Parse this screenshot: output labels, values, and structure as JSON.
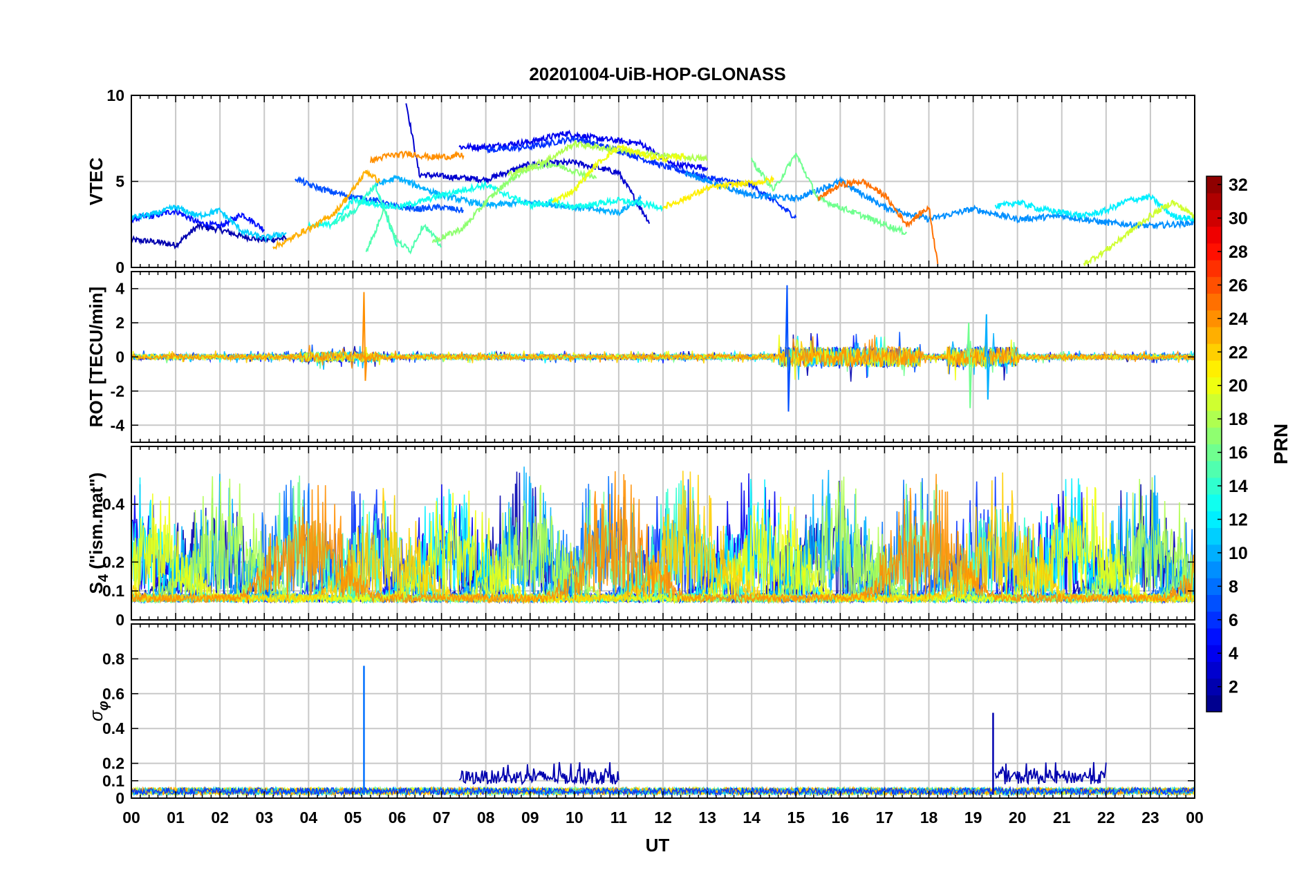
{
  "figure": {
    "title": "20201004-UiB-HOP-GLONASS",
    "xlabel": "UT"
  },
  "chart_data": [
    {
      "type": "line",
      "ylabel": "VTEC",
      "xlim": [
        0,
        24
      ],
      "ylim": [
        0,
        10
      ],
      "yticks": [
        0,
        5,
        10
      ],
      "grid": true,
      "x_ticklabels": [
        "00",
        "01",
        "02",
        "03",
        "04",
        "05",
        "06",
        "07",
        "08",
        "09",
        "10",
        "11",
        "12",
        "13",
        "14",
        "15",
        "16",
        "17",
        "18",
        "19",
        "20",
        "21",
        "22",
        "23",
        "00"
      ],
      "series": [
        {
          "prn": 2,
          "x": [
            0,
            0.5,
            1,
            1.5,
            2,
            2.5,
            3,
            3.5
          ],
          "y": [
            1.6,
            1.5,
            1.3,
            2.4,
            2.2,
            1.8,
            1.6,
            1.7
          ]
        },
        {
          "prn": 5,
          "x": [
            0,
            0.5,
            1,
            1.5,
            2,
            2.5,
            3
          ],
          "y": [
            2.8,
            3.0,
            3.3,
            2.6,
            2.4,
            3.1,
            2.2
          ]
        },
        {
          "prn": 3,
          "x": [
            6.2,
            6.5,
            7,
            8,
            9,
            10,
            11,
            11.7
          ],
          "y": [
            9.6,
            5.4,
            5.3,
            5.1,
            6.0,
            6.1,
            5.5,
            2.6
          ]
        },
        {
          "prn": 4,
          "x": [
            7.4,
            8,
            9,
            9.8,
            10.5,
            11.5,
            12.2,
            13
          ],
          "y": [
            7.0,
            7.0,
            7.3,
            7.8,
            7.5,
            7.2,
            6.0,
            5.8
          ]
        },
        {
          "prn": 6,
          "x": [
            8,
            9,
            10,
            11,
            12,
            13,
            14,
            15
          ],
          "y": [
            6.8,
            7.0,
            7.5,
            6.8,
            5.9,
            5.2,
            4.8,
            2.9
          ]
        },
        {
          "prn": 9,
          "x": [
            12.5,
            13,
            13.5,
            14,
            15,
            16,
            17,
            18,
            19,
            20,
            21,
            22,
            23,
            24
          ],
          "y": [
            5.5,
            5.0,
            4.6,
            4.2,
            4.0,
            5.0,
            3.5,
            2.8,
            3.4,
            2.8,
            3.0,
            2.6,
            2.4,
            2.6
          ]
        },
        {
          "prn": 7,
          "x": [
            3.7,
            4,
            4.5,
            5,
            5.5,
            6,
            6.5,
            7,
            7.5
          ],
          "y": [
            5.2,
            4.8,
            4.4,
            4.1,
            3.9,
            3.5,
            3.4,
            3.5,
            3.3
          ]
        },
        {
          "prn": 11,
          "x": [
            0,
            0.5,
            1,
            1.5,
            2,
            2.5,
            3,
            3.5
          ],
          "y": [
            2.9,
            3.1,
            3.5,
            3.0,
            3.3,
            2.1,
            1.7,
            2.0
          ]
        },
        {
          "prn": 10,
          "x": [
            5.5,
            6,
            7,
            8,
            9,
            10,
            11,
            11.5
          ],
          "y": [
            4.8,
            5.2,
            4.2,
            3.6,
            3.8,
            3.5,
            3.2,
            4.0
          ]
        },
        {
          "prn": 13,
          "x": [
            4,
            4.5,
            5,
            5.5,
            6,
            6.5,
            7,
            7.5,
            8,
            8.5,
            9,
            9.5,
            10,
            10.5,
            11,
            12
          ],
          "y": [
            2.4,
            2.5,
            3.9,
            3.7,
            3.5,
            3.8,
            4.2,
            4.5,
            4.8,
            4.2,
            3.6,
            3.8,
            3.5,
            3.7,
            3.9,
            3.5
          ]
        },
        {
          "prn": 12,
          "x": [
            19.5,
            20,
            20.5,
            21,
            21.5,
            22,
            22.5,
            23,
            23.5,
            24
          ],
          "y": [
            3.5,
            3.8,
            3.4,
            3.2,
            3.0,
            3.3,
            3.9,
            4.1,
            3.0,
            2.8
          ]
        },
        {
          "prn": 14,
          "x": [
            4.5,
            5,
            5.5,
            6
          ],
          "y": [
            2.5,
            3.2,
            4.8,
            1.2
          ]
        },
        {
          "prn": 15,
          "x": [
            5.3,
            5.5,
            5.7,
            6.0,
            6.3,
            6.6,
            7
          ],
          "y": [
            1.0,
            2.0,
            3.5,
            1.5,
            1.0,
            2.5,
            1.2
          ]
        },
        {
          "prn": 16,
          "x": [
            14,
            14.5,
            15,
            15.5,
            16,
            16.5,
            17,
            17.5
          ],
          "y": [
            6.2,
            4.5,
            6.6,
            4.0,
            3.5,
            3.0,
            2.5,
            2.0
          ]
        },
        {
          "prn": 17,
          "x": [
            6.8,
            7.5,
            8,
            8.5,
            9,
            9.5,
            10,
            10.5
          ],
          "y": [
            1.5,
            2.3,
            3.8,
            5.0,
            5.8,
            6.0,
            5.6,
            5.2
          ]
        },
        {
          "prn": 18,
          "x": [
            8.5,
            9,
            9.5,
            10,
            11,
            12,
            13
          ],
          "y": [
            5.4,
            5.8,
            6.4,
            7.2,
            6.8,
            6.5,
            6.3
          ]
        },
        {
          "prn": 20,
          "x": [
            9.5,
            10,
            10.5,
            11,
            11.5,
            12,
            12.5
          ],
          "y": [
            3.8,
            4.5,
            6.0,
            7.0,
            6.6,
            6.3,
            6.5
          ]
        },
        {
          "prn": 21,
          "x": [
            12,
            12.5,
            13,
            13.5,
            14,
            14.5
          ],
          "y": [
            3.5,
            4.0,
            4.6,
            4.8,
            4.9,
            5.1
          ]
        },
        {
          "prn": 19,
          "x": [
            21.5,
            22,
            22.5,
            23,
            23.5,
            24
          ],
          "y": [
            0.2,
            1.0,
            2.0,
            3.0,
            3.8,
            3.0
          ]
        },
        {
          "prn": 23,
          "x": [
            3.2,
            3.5,
            3.8,
            4.2,
            4.6,
            5.0,
            5.3,
            5.6
          ],
          "y": [
            1.2,
            1.5,
            2.0,
            2.5,
            3.2,
            4.5,
            5.6,
            5.0
          ]
        },
        {
          "prn": 24,
          "x": [
            5.4,
            5.8,
            6.3,
            6.8,
            7.5
          ],
          "y": [
            6.2,
            6.5,
            6.6,
            6.4,
            6.5
          ]
        },
        {
          "prn": 25,
          "x": [
            15.5,
            16,
            16.5,
            17,
            17.5,
            18,
            18.2
          ],
          "y": [
            4.0,
            4.8,
            5.0,
            4.2,
            2.5,
            3.5,
            0.2
          ]
        }
      ]
    },
    {
      "type": "line",
      "ylabel": "ROT [TECU/min]",
      "xlim": [
        0,
        24
      ],
      "ylim": [
        -5,
        5
      ],
      "yticks": [
        -4,
        -2,
        0,
        2,
        4
      ],
      "grid": true,
      "spikes": [
        {
          "prn": 24,
          "x": 5.25,
          "ymax": 3.8,
          "ymin": -1.4
        },
        {
          "prn": 7,
          "x": 14.8,
          "ymax": 4.2,
          "ymin": -3.2
        },
        {
          "prn": 16,
          "x": 18.9,
          "ymax": 2.0,
          "ymin": -3.0
        },
        {
          "prn": 10,
          "x": 19.3,
          "ymax": 2.5,
          "ymin": -2.5
        }
      ]
    },
    {
      "type": "line",
      "ylabel": "S",
      "ylabel_sub": "4",
      "ylabel_suffix": " (\"ism.mat\")",
      "xlim": [
        0,
        24
      ],
      "ylim": [
        0,
        0.6
      ],
      "yticks": [
        0,
        0.1,
        0.2,
        0.4
      ],
      "grid": true
    },
    {
      "type": "line",
      "ylabel": "σ",
      "ylabel_sub": "φ",
      "xlim": [
        0,
        24
      ],
      "ylim": [
        0,
        1
      ],
      "yticks": [
        0,
        0.1,
        0.2,
        0.4,
        0.6,
        0.8
      ],
      "grid": true,
      "spikes": [
        {
          "prn": 8,
          "x": 5.25,
          "ymax": 0.76
        },
        {
          "prn": 2,
          "x": 19.45,
          "ymax": 0.49
        }
      ]
    }
  ],
  "colorbar": {
    "label": "PRN",
    "min": 1,
    "max": 32,
    "ticks": [
      "2",
      "4",
      "6",
      "8",
      "10",
      "12",
      "14",
      "16",
      "18",
      "20",
      "22",
      "24",
      "26",
      "28",
      "30",
      "32"
    ]
  }
}
